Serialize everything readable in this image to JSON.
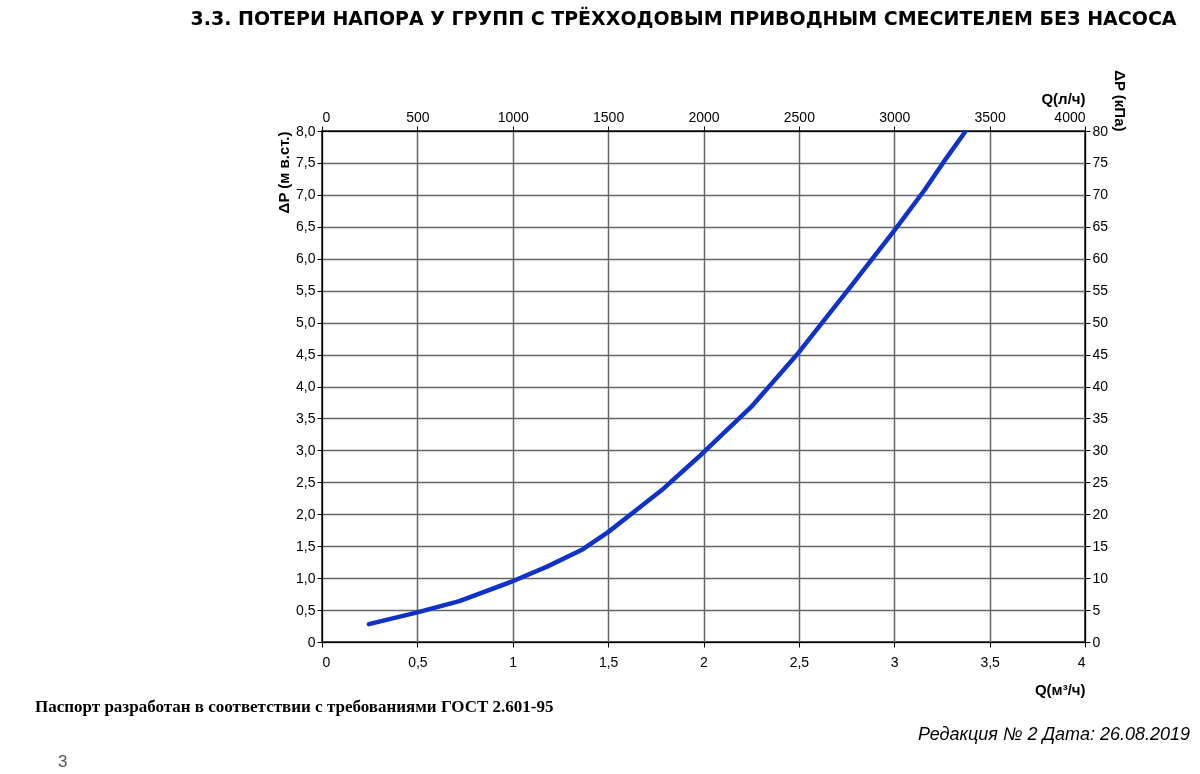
{
  "chart_data": {
    "type": "line",
    "title": "3.3. ПОТЕРИ НАПОРА У ГРУПП С ТРЁХХОДОВЫМ ПРИВОДНЫМ СМЕСИТЕЛЕМ БЕЗ НАСОСА",
    "xlabel": "Q(м³/ч)",
    "x2label": "Q(л/ч)",
    "ylabel": "ΔP (м в.ст.)",
    "y2label": "ΔP (кПа)",
    "x": [
      0.246,
      0.495,
      0.72,
      0.99,
      1.18,
      1.36,
      1.5,
      1.79,
      1.99,
      2.25,
      2.49,
      2.76,
      3.0,
      3.16,
      3.26,
      3.37
    ],
    "series": [
      {
        "color": "#0f32c8",
        "values": [
          0.28,
          0.46,
          0.64,
          0.94,
          1.18,
          1.44,
          1.72,
          2.4,
          2.94,
          3.68,
          4.5,
          5.52,
          6.44,
          7.08,
          7.52,
          7.98
        ]
      }
    ],
    "xlim": [
      0,
      4
    ],
    "xticks": [
      0,
      {
        "value": 0.5,
        "label": "0,5"
      },
      1,
      {
        "value": 1.5,
        "label": "1,5"
      },
      2,
      {
        "value": 2.5,
        "label": "2,5"
      },
      3,
      {
        "value": 3.5,
        "label": "3,5"
      },
      4
    ],
    "x2lim": [
      0,
      4000
    ],
    "x2ticks": [
      0,
      500,
      1000,
      1500,
      2000,
      2500,
      3000,
      3500,
      4000
    ],
    "ylim": [
      0,
      8
    ],
    "yticks": [
      0,
      {
        "value": 0.5,
        "label": "0,5"
      },
      {
        "value": 1,
        "label": "1,0"
      },
      {
        "value": 1.5,
        "label": "1,5"
      },
      {
        "value": 2,
        "label": "2,0"
      },
      {
        "value": 2.5,
        "label": "2,5"
      },
      {
        "value": 3,
        "label": "3,0"
      },
      {
        "value": 3.5,
        "label": "3,5"
      },
      {
        "value": 4,
        "label": "4,0"
      },
      {
        "value": 4.5,
        "label": "4,5"
      },
      {
        "value": 5,
        "label": "5,0"
      },
      {
        "value": 5.5,
        "label": "5,5"
      },
      {
        "value": 6,
        "label": "6,0"
      },
      {
        "value": 6.5,
        "label": "6,5"
      },
      {
        "value": 7,
        "label": "7,0"
      },
      {
        "value": 7.5,
        "label": "7,5"
      },
      {
        "value": 8,
        "label": "8,0"
      }
    ],
    "y2lim": [
      0,
      80
    ],
    "y2ticks": [
      0,
      5,
      10,
      15,
      20,
      25,
      30,
      35,
      40,
      45,
      50,
      55,
      60,
      65,
      70,
      75,
      80
    ],
    "grid": true,
    "annotations": [
      "Паспорт разработан в соответствии с требованиями ГОСТ 2.601-95",
      "Редакция № 2 Дата: 26.08.2019",
      "3"
    ]
  }
}
